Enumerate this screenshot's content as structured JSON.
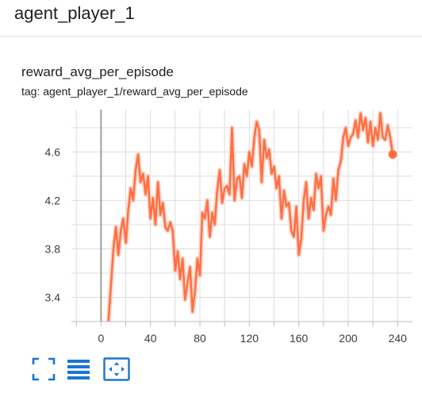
{
  "header": {
    "title": "agent_player_1"
  },
  "card": {
    "title": "reward_avg_per_episode",
    "tag": "tag: agent_player_1/reward_avg_per_episode"
  },
  "toolbar": {
    "icons": [
      "fullscreen-icon",
      "data-table-icon",
      "fit-domain-icon"
    ]
  },
  "colors": {
    "line": "#ff7043",
    "line_smoothed_bg": "#fbd3c7",
    "grid": "#dddddd",
    "zero_axis": "#9e9e9e",
    "toolbar_icon": "#1976d2"
  },
  "chart_data": {
    "type": "line",
    "title": "",
    "xlabel": "",
    "ylabel": "",
    "xlim": [
      -24,
      252
    ],
    "ylim": [
      3.2,
      4.95
    ],
    "xticks": [
      0,
      40,
      80,
      120,
      160,
      200,
      240
    ],
    "yticks": [
      3.4,
      3.8,
      4.2,
      4.6
    ],
    "xtick_labels": [
      "0",
      "40",
      "80",
      "120",
      "160",
      "200",
      "240"
    ],
    "ytick_labels": [
      "3.4",
      "3.8",
      "4.2",
      "4.6"
    ],
    "grid": true,
    "series": [
      {
        "name": "",
        "x": [
          6,
          8,
          10,
          12,
          14,
          16,
          18,
          20,
          22,
          24,
          26,
          28,
          30,
          32,
          34,
          36,
          38,
          40,
          42,
          44,
          46,
          48,
          50,
          52,
          54,
          56,
          58,
          60,
          62,
          64,
          66,
          68,
          70,
          72,
          74,
          76,
          78,
          80,
          82,
          84,
          86,
          88,
          90,
          92,
          94,
          96,
          98,
          100,
          102,
          104,
          106,
          108,
          110,
          112,
          114,
          116,
          118,
          120,
          122,
          124,
          126,
          128,
          130,
          132,
          134,
          136,
          138,
          140,
          142,
          144,
          146,
          148,
          150,
          152,
          154,
          156,
          158,
          160,
          162,
          164,
          166,
          168,
          170,
          172,
          174,
          176,
          178,
          180,
          182,
          184,
          186,
          188,
          190,
          192,
          194,
          196,
          198,
          200,
          202,
          204,
          206,
          208,
          210,
          212,
          214,
          216,
          218,
          220,
          222,
          224,
          226,
          228,
          230,
          232,
          234,
          236
        ],
        "y": [
          3.2,
          3.5,
          3.8,
          3.98,
          3.75,
          3.95,
          4.05,
          3.85,
          4.12,
          4.3,
          4.2,
          4.45,
          4.58,
          4.35,
          4.42,
          4.25,
          4.4,
          4.05,
          4.22,
          4.0,
          4.35,
          4.08,
          4.18,
          3.98,
          3.95,
          4.02,
          3.95,
          3.62,
          3.78,
          3.55,
          3.72,
          3.38,
          3.52,
          3.65,
          3.28,
          3.45,
          3.72,
          3.58,
          4.1,
          4.05,
          4.2,
          3.9,
          4.1,
          4.0,
          4.28,
          4.45,
          4.18,
          4.3,
          4.32,
          4.25,
          4.8,
          4.2,
          4.38,
          4.4,
          4.22,
          4.5,
          4.4,
          4.6,
          4.48,
          4.72,
          4.85,
          4.78,
          4.35,
          4.7,
          4.55,
          4.62,
          4.42,
          4.48,
          4.3,
          4.4,
          4.05,
          4.28,
          4.15,
          4.18,
          3.95,
          3.9,
          4.15,
          3.75,
          3.88,
          4.2,
          4.35,
          4.05,
          4.22,
          4.12,
          4.42,
          4.3,
          4.4,
          3.95,
          4.08,
          4.15,
          4.08,
          4.38,
          4.2,
          4.45,
          4.52,
          4.72,
          4.8,
          4.65,
          4.72,
          4.75,
          4.86,
          4.72,
          4.92,
          4.78,
          4.88,
          4.68,
          4.85,
          4.65,
          4.8,
          4.7,
          4.92,
          4.72,
          4.7,
          4.82,
          4.72,
          4.58
        ]
      }
    ]
  }
}
